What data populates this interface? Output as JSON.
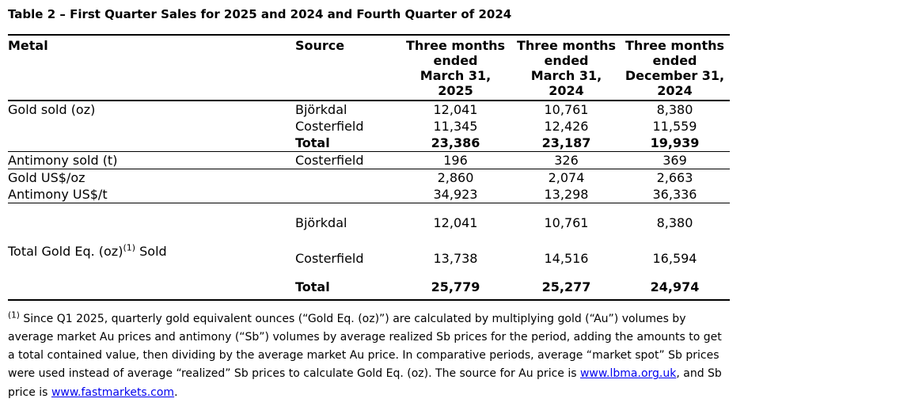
{
  "title": "Table 2 – First Quarter Sales for 2025 and 2024 and Fourth Quarter of 2024",
  "table": {
    "headers": {
      "metal": "Metal",
      "source": "Source",
      "periods": [
        "Three months\nended\nMarch 31,\n2025",
        "Three months\nended\nMarch 31,\n2024",
        "Three months\nended\nDecember 31,\n2024"
      ]
    },
    "sections": [
      {
        "id": "gold-sold",
        "rows": [
          {
            "metal": "Gold sold (oz)",
            "source": "Björkdal",
            "values": [
              "12,041",
              "10,761",
              "8,380"
            ],
            "bold": false
          },
          {
            "metal": "",
            "source": "Costerfield",
            "values": [
              "11,345",
              "12,426",
              "11,559"
            ],
            "bold": false
          },
          {
            "metal": "",
            "source": "Total",
            "values": [
              "23,386",
              "23,187",
              "19,939"
            ],
            "bold": true
          }
        ]
      },
      {
        "id": "antimony-sold",
        "rows": [
          {
            "metal": "Antimony sold (t)",
            "source": "Costerfield",
            "values": [
              "196",
              "326",
              "369"
            ],
            "bold": false
          }
        ]
      },
      {
        "id": "prices",
        "rows": [
          {
            "metal": "Gold US$/oz",
            "source": "",
            "values": [
              "2,860",
              "2,074",
              "2,663"
            ],
            "bold": false
          },
          {
            "metal": "Antimony US$/t",
            "source": "",
            "values": [
              "34,923",
              "13,298",
              "36,336"
            ],
            "bold": false
          }
        ]
      },
      {
        "id": "gold-equivalent",
        "tall": true,
        "metal_label": {
          "pre": "Total Gold Eq. (oz)",
          "sup": "(1)",
          "post": " Sold"
        },
        "rows": [
          {
            "source": "Björkdal",
            "values": [
              "12,041",
              "10,761",
              "8,380"
            ],
            "bold": false
          },
          {
            "source": "Costerfield",
            "values": [
              "13,738",
              "14,516",
              "16,594"
            ],
            "bold": false
          },
          {
            "source": "Total",
            "values": [
              "25,779",
              "25,277",
              "24,974"
            ],
            "bold": true
          }
        ]
      }
    ]
  },
  "footnote": {
    "marker": "(1)",
    "segments": [
      {
        "text": " Since Q1 2025, quarterly gold equivalent ounces (“Gold Eq. (oz)”) are calculated by multiplying gold (“Au”) volumes by average market Au prices and antimony (“Sb”) volumes by average realized Sb prices for the period, adding the amounts to get a total contained value, then dividing by the average market Au price. In comparative periods, average “market spot” Sb prices were used instead of average “realized” Sb prices to calculate Gold Eq. (oz). The source for Au price is "
      },
      {
        "text": "www.lbma.org.uk",
        "link": true,
        "name": "lbma-link"
      },
      {
        "text": ", and Sb price is "
      },
      {
        "text": "www.fastmarkets.com",
        "link": true,
        "name": "fastmarkets-link"
      },
      {
        "text": "."
      }
    ]
  },
  "colors": {
    "text": "#000000",
    "background": "#ffffff",
    "link": "#0000EE",
    "rule": "#000000"
  }
}
